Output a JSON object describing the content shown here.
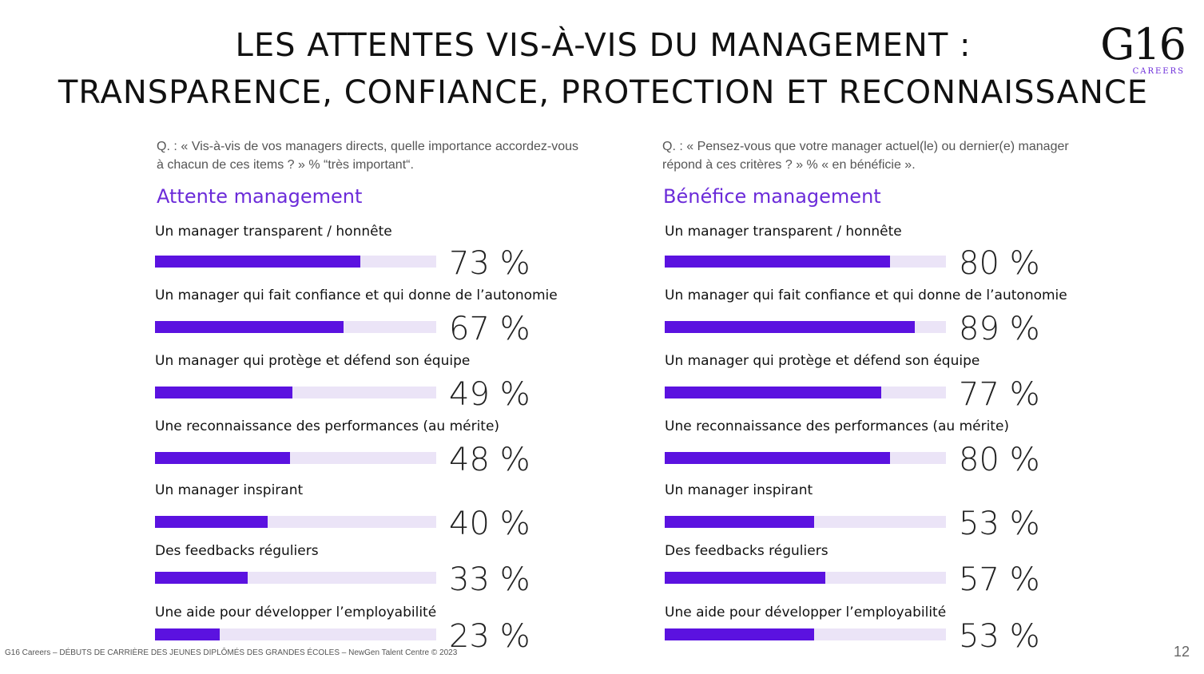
{
  "page": {
    "title_line1": "LES ATTENTES VIS-À-VIS DU MANAGEMENT :",
    "title_line2": "TRANSPARENCE, CONFIANCE, PROTECTION ET RECONNAISSANCE",
    "logo_main": "G16",
    "logo_sub": "CAREERS",
    "footer": "G16 Careers – DÉBUTS DE CARRIÈRE DES JEUNES DIPLÔMÉS DES GRANDES ÉCOLES – NewGen Talent Centre © 2023",
    "page_number": "12"
  },
  "left": {
    "question": "Q. : « Vis-à-vis de vos managers directs, quelle importance accordez-vous à chacun de ces items ? » % “très important“.",
    "heading": "Attente management"
  },
  "right": {
    "question": "Q. : « Pensez-vous que votre manager actuel(le) ou dernier(e) manager répond à ces critères ? » % « en bénéficie ».",
    "heading": "Bénéfice management"
  },
  "colors": {
    "accent": "#6b2bd9",
    "bar_fill": "#5b12e0",
    "bar_track": "#ebe4f7"
  },
  "chart_data": [
    {
      "type": "bar",
      "orientation": "horizontal",
      "title": "Attente management",
      "categories": [
        "Un manager transparent / honnête",
        "Un manager qui fait confiance et qui donne de l’autonomie",
        "Un manager qui protège et défend son équipe",
        "Une reconnaissance des performances (au mérite)",
        "Un manager inspirant",
        "Des feedbacks réguliers",
        "Une aide pour développer l’employabilité"
      ],
      "values": [
        73,
        67,
        49,
        48,
        40,
        33,
        23
      ],
      "labels": [
        "73 %",
        "67 %",
        "49 %",
        "48 %",
        "40 %",
        "33 %",
        "23 %"
      ],
      "xlim": [
        0,
        100
      ],
      "unit": "%"
    },
    {
      "type": "bar",
      "orientation": "horizontal",
      "title": "Bénéfice management",
      "categories": [
        "Un manager transparent / honnête",
        "Un manager qui fait confiance et qui donne de l’autonomie",
        "Un manager qui protège et défend son équipe",
        "Une reconnaissance des performances (au mérite)",
        "Un manager inspirant",
        "Des feedbacks réguliers",
        "Une aide pour développer l’employabilité"
      ],
      "values": [
        80,
        89,
        77,
        80,
        53,
        57,
        53
      ],
      "labels": [
        "80 %",
        "89 %",
        "77 %",
        "80 %",
        "53 %",
        "57 %",
        "53 %"
      ],
      "xlim": [
        0,
        100
      ],
      "unit": "%"
    }
  ]
}
